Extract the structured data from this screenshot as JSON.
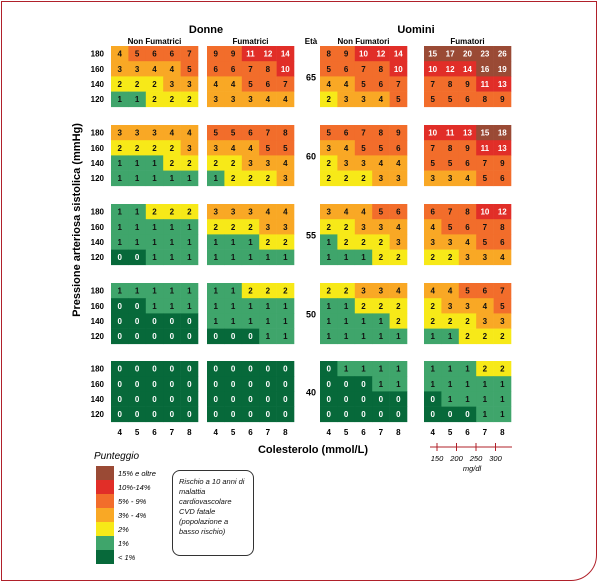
{
  "chart_data": {
    "type": "heatmap",
    "title": "",
    "ylabel": "Pressione arteriosa sistolica (mmHg)",
    "xlabel": "Colesterolo (mmol/L)",
    "gender_labels": [
      "Donne",
      "Uomini"
    ],
    "smoking_labels": [
      "Non Fumatrici",
      "Fumatrici",
      "Non Fumatori",
      "Fumatori"
    ],
    "age_header": "Età",
    "ages": [
      "65",
      "60",
      "55",
      "50",
      "40"
    ],
    "systolic_levels": [
      "180",
      "160",
      "140",
      "120"
    ],
    "cholesterol_levels": [
      "4",
      "5",
      "6",
      "7",
      "8"
    ],
    "mgdl_ticks": [
      "150",
      "200",
      "250",
      "300"
    ],
    "mgdl_unit": "mg/dl",
    "values": {
      "65": [
        [
          [
            4,
            5,
            6,
            6,
            7
          ],
          [
            3,
            3,
            4,
            4,
            5
          ],
          [
            2,
            2,
            2,
            3,
            3
          ],
          [
            1,
            1,
            2,
            2,
            2
          ]
        ],
        [
          [
            9,
            9,
            11,
            12,
            14
          ],
          [
            6,
            6,
            7,
            8,
            10
          ],
          [
            4,
            4,
            5,
            6,
            7
          ],
          [
            3,
            3,
            3,
            4,
            4
          ]
        ],
        [
          [
            8,
            9,
            10,
            12,
            14
          ],
          [
            5,
            6,
            7,
            8,
            10
          ],
          [
            4,
            4,
            5,
            6,
            7
          ],
          [
            2,
            3,
            3,
            4,
            5
          ]
        ],
        [
          [
            15,
            17,
            20,
            23,
            26
          ],
          [
            10,
            12,
            14,
            16,
            19
          ],
          [
            7,
            8,
            9,
            11,
            13
          ],
          [
            5,
            5,
            6,
            8,
            9
          ]
        ]
      ],
      "60": [
        [
          [
            3,
            3,
            3,
            4,
            4
          ],
          [
            2,
            2,
            2,
            2,
            3
          ],
          [
            1,
            1,
            1,
            2,
            2
          ],
          [
            1,
            1,
            1,
            1,
            1
          ]
        ],
        [
          [
            5,
            5,
            6,
            7,
            8
          ],
          [
            3,
            4,
            4,
            5,
            5
          ],
          [
            2,
            2,
            3,
            3,
            4
          ],
          [
            1,
            2,
            2,
            2,
            3
          ]
        ],
        [
          [
            5,
            6,
            7,
            8,
            9
          ],
          [
            3,
            4,
            5,
            5,
            6
          ],
          [
            2,
            3,
            3,
            4,
            4
          ],
          [
            2,
            2,
            2,
            3,
            3
          ]
        ],
        [
          [
            10,
            11,
            13,
            15,
            18
          ],
          [
            7,
            8,
            9,
            11,
            13
          ],
          [
            5,
            5,
            6,
            7,
            9
          ],
          [
            3,
            3,
            4,
            5,
            6
          ]
        ]
      ],
      "55": [
        [
          [
            1,
            1,
            2,
            2,
            2
          ],
          [
            1,
            1,
            1,
            1,
            1
          ],
          [
            1,
            1,
            1,
            1,
            1
          ],
          [
            0,
            0,
            1,
            1,
            1
          ]
        ],
        [
          [
            3,
            3,
            3,
            4,
            4
          ],
          [
            2,
            2,
            2,
            3,
            3
          ],
          [
            1,
            1,
            1,
            2,
            2
          ],
          [
            1,
            1,
            1,
            1,
            1
          ]
        ],
        [
          [
            3,
            4,
            4,
            5,
            6
          ],
          [
            2,
            2,
            3,
            3,
            4
          ],
          [
            1,
            2,
            2,
            2,
            3
          ],
          [
            1,
            1,
            1,
            2,
            2
          ]
        ],
        [
          [
            6,
            7,
            8,
            10,
            12
          ],
          [
            4,
            5,
            6,
            7,
            8
          ],
          [
            3,
            3,
            4,
            5,
            6
          ],
          [
            2,
            2,
            3,
            3,
            4
          ]
        ]
      ],
      "50": [
        [
          [
            1,
            1,
            1,
            1,
            1
          ],
          [
            0,
            0,
            1,
            1,
            1
          ],
          [
            0,
            0,
            0,
            0,
            0
          ],
          [
            0,
            0,
            0,
            0,
            0
          ]
        ],
        [
          [
            1,
            1,
            2,
            2,
            2
          ],
          [
            1,
            1,
            1,
            1,
            1
          ],
          [
            1,
            1,
            1,
            1,
            1
          ],
          [
            0,
            0,
            0,
            1,
            1
          ]
        ],
        [
          [
            2,
            2,
            3,
            3,
            4
          ],
          [
            1,
            1,
            2,
            2,
            2
          ],
          [
            1,
            1,
            1,
            1,
            2
          ],
          [
            1,
            1,
            1,
            1,
            1
          ]
        ],
        [
          [
            4,
            4,
            5,
            6,
            7
          ],
          [
            2,
            3,
            3,
            4,
            5
          ],
          [
            2,
            2,
            2,
            3,
            3
          ],
          [
            1,
            1,
            2,
            2,
            2
          ]
        ]
      ],
      "40": [
        [
          [
            0,
            0,
            0,
            0,
            0
          ],
          [
            0,
            0,
            0,
            0,
            0
          ],
          [
            0,
            0,
            0,
            0,
            0
          ],
          [
            0,
            0,
            0,
            0,
            0
          ]
        ],
        [
          [
            0,
            0,
            0,
            0,
            0
          ],
          [
            0,
            0,
            0,
            0,
            0
          ],
          [
            0,
            0,
            0,
            0,
            0
          ],
          [
            0,
            0,
            0,
            0,
            0
          ]
        ],
        [
          [
            0,
            1,
            1,
            1,
            1
          ],
          [
            0,
            0,
            0,
            1,
            1
          ],
          [
            0,
            0,
            0,
            0,
            0
          ],
          [
            0,
            0,
            0,
            0,
            0
          ]
        ],
        [
          [
            1,
            1,
            1,
            2,
            2
          ],
          [
            1,
            1,
            1,
            1,
            1
          ],
          [
            0,
            1,
            1,
            1,
            1
          ],
          [
            0,
            0,
            0,
            1,
            1
          ]
        ]
      ]
    },
    "legend_title": "Punteggio",
    "legend": [
      {
        "label": "15% e oltre",
        "min": 15,
        "color": "#9a4a35"
      },
      {
        "label": "10%-14%",
        "min": 10,
        "color": "#e12e28"
      },
      {
        "label": "5% - 9%",
        "min": 5,
        "color": "#f26d2b"
      },
      {
        "label": "3% - 4%",
        "min": 3,
        "color": "#f9a825"
      },
      {
        "label": "2%",
        "min": 2,
        "color": "#f7e918"
      },
      {
        "label": "1%",
        "min": 1,
        "color": "#3fa56b"
      },
      {
        "label": "< 1%",
        "min": 0,
        "color": "#07693a"
      }
    ],
    "note": "Rischio a 10 anni di malattia cardiovascolare CVD fatale (popolazione a basso rischio)"
  }
}
